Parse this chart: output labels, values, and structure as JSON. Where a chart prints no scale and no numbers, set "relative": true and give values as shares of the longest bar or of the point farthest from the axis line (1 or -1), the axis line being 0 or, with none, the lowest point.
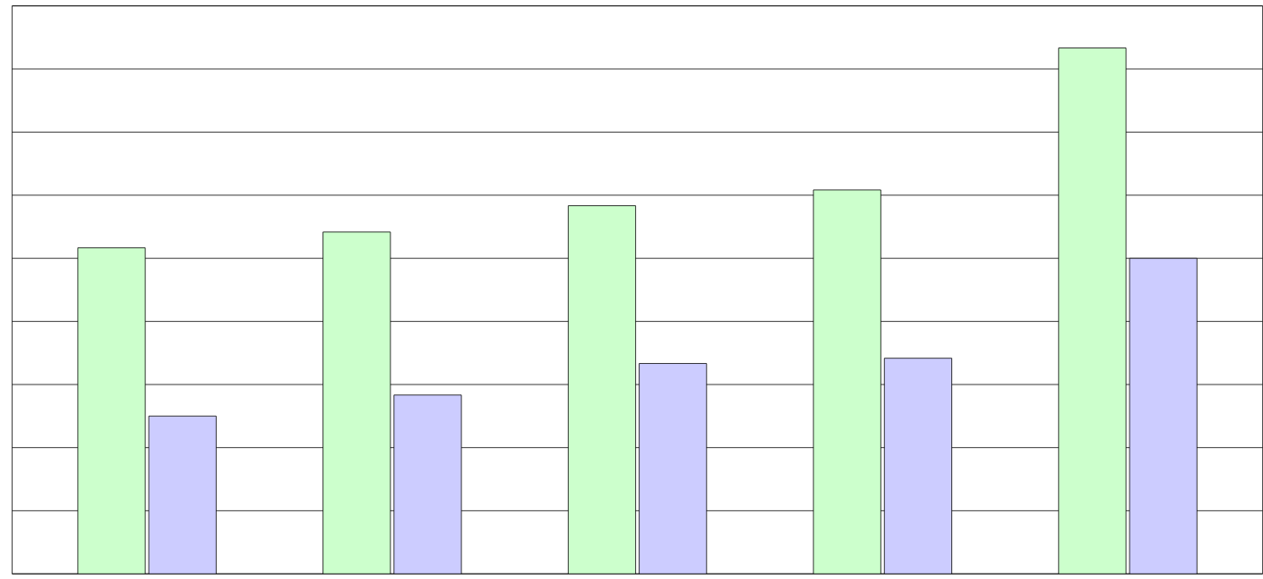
{
  "chart_data": {
    "type": "bar",
    "relative": true,
    "grid": true,
    "categories": [
      null,
      null,
      null,
      null,
      null
    ],
    "series": [
      {
        "color": "#ccffcc",
        "values": [
          0.62,
          0.65,
          0.7,
          0.73,
          1
        ]
      },
      {
        "color": "#ccccff",
        "values": [
          0.3,
          0.34,
          0.4,
          0.41,
          0.6
        ]
      }
    ]
  }
}
